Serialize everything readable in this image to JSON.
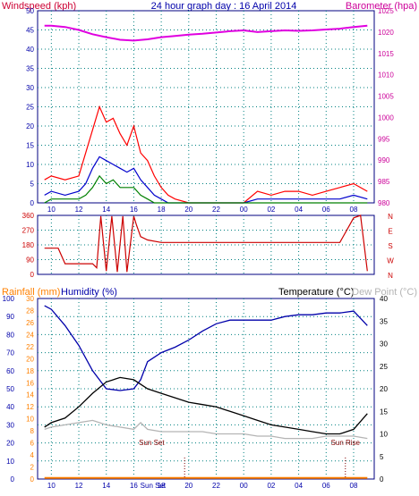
{
  "header": {
    "windspeed_label": "Windspeed (kph)",
    "title": "24 hour graph day : 16 April 2014",
    "barometer_label": "Barometer (hpa)"
  },
  "bottom_header": {
    "rainfall_label": "Rainfall (mm)",
    "humidity_label": "Humidity (%)",
    "temperature_label": "Temperature (°C)",
    "dewpoint_label": "Dew Point (°C)"
  },
  "colors": {
    "wind_gust": "#ff0000",
    "wind_avg": "#0000cc",
    "wind_low": "#008000",
    "barometer": "#e000e0",
    "direction": "#cc0000",
    "humidity": "#0000aa",
    "temperature": "#000000",
    "dewpoint": "#b4b4b4",
    "rainfall": "#ff8000",
    "header_red": "#cc0033",
    "header_magenta": "#cc0099",
    "header_blue": "#0000aa",
    "frame": "#000080",
    "grid": "#008080"
  },
  "time_ticks": [
    "10",
    "12",
    "14",
    "16",
    "18",
    "20",
    "22",
    "00",
    "02",
    "04",
    "06",
    "08"
  ],
  "chart_data": [
    {
      "type": "line",
      "id": "wind-barometer",
      "title": "24 hour graph day : 16 April 2014",
      "y_left": {
        "label": "Windspeed (kph)",
        "range": [
          0,
          50
        ],
        "ticks": [
          "0",
          "5",
          "10",
          "15",
          "20",
          "25",
          "30",
          "35",
          "40",
          "45",
          "50"
        ]
      },
      "y_right": {
        "label": "Barometer (hpa)",
        "range": [
          980,
          1025
        ],
        "ticks": [
          "980",
          "985",
          "990",
          "995",
          "1000",
          "1005",
          "1010",
          "1015",
          "1020",
          "1025"
        ]
      },
      "x_ticks": [
        "10",
        "12",
        "14",
        "16",
        "18",
        "20",
        "22",
        "00",
        "02",
        "04",
        "06",
        "08"
      ],
      "grid": true,
      "series": [
        {
          "role": "barometer",
          "x": [
            9.5,
            10,
            11,
            12,
            13,
            14,
            15,
            16,
            17,
            18,
            19,
            20,
            21,
            22,
            23,
            24,
            25,
            26,
            27,
            28,
            29,
            30,
            31,
            32,
            33
          ],
          "values": [
            1021.5,
            1021.5,
            1021.2,
            1020.5,
            1019.5,
            1018.8,
            1018.2,
            1018.0,
            1018.3,
            1018.8,
            1019.1,
            1019.4,
            1019.6,
            1019.9,
            1020.2,
            1020.4,
            1020.0,
            1020.2,
            1020.4,
            1020.3,
            1020.4,
            1020.6,
            1020.8,
            1021.2,
            1021.5
          ]
        },
        {
          "role": "wind_gust",
          "x": [
            9.5,
            10,
            11,
            12,
            12.5,
            13,
            13.5,
            14,
            14.5,
            15,
            15.5,
            16,
            16.5,
            17,
            17.5,
            18,
            18.5,
            19,
            20,
            22,
            24,
            25,
            26,
            27,
            28,
            29,
            30,
            31,
            32,
            33
          ],
          "values": [
            6,
            7,
            6,
            7,
            13,
            19,
            25,
            21,
            22,
            18,
            15,
            20,
            13,
            11,
            7,
            4,
            2,
            1,
            0,
            0,
            0,
            3,
            2,
            3,
            3,
            2,
            3,
            4,
            5,
            3
          ]
        },
        {
          "role": "wind_avg",
          "x": [
            9.5,
            10,
            11,
            12,
            12.5,
            13,
            13.5,
            14,
            14.5,
            15,
            15.5,
            16,
            16.5,
            17,
            17.5,
            18,
            18.5,
            19,
            20,
            22,
            24,
            25,
            26,
            27,
            28,
            29,
            30,
            31,
            32,
            33
          ],
          "values": [
            2,
            3,
            2,
            3,
            5,
            9,
            12,
            11,
            10,
            9,
            8,
            9,
            6,
            4,
            2,
            1,
            0,
            0,
            0,
            0,
            0,
            1,
            1,
            1,
            1,
            1,
            1,
            1,
            2,
            1
          ]
        },
        {
          "role": "wind_low",
          "x": [
            9.5,
            10,
            11,
            12,
            12.5,
            13,
            13.5,
            14,
            14.5,
            15,
            15.5,
            16,
            16.5,
            17,
            17.5,
            18,
            18.5,
            19,
            20,
            22,
            24,
            25,
            26,
            27,
            28,
            29,
            30,
            31,
            32,
            33
          ],
          "values": [
            0,
            1,
            1,
            1,
            2,
            4,
            7,
            5,
            6,
            4,
            4,
            4,
            2,
            1,
            0,
            0,
            0,
            0,
            0,
            0,
            0,
            0,
            0,
            0,
            0,
            0,
            0,
            0,
            0,
            0
          ]
        }
      ]
    },
    {
      "type": "line",
      "id": "wind-direction",
      "y_left_ticks": [
        "0",
        "90",
        "180",
        "270",
        "360"
      ],
      "y_right_ticks": [
        "N",
        "W",
        "S",
        "E",
        "N"
      ],
      "y_range": [
        0,
        360
      ],
      "grid": true,
      "series": [
        {
          "role": "direction",
          "x": [
            9.5,
            10.5,
            11,
            12,
            13,
            13.3,
            13.6,
            14,
            14.4,
            14.8,
            15.2,
            15.5,
            16,
            16.2,
            16.5,
            17,
            18,
            20,
            22,
            24,
            26,
            28,
            30,
            31,
            32,
            32.5,
            33
          ],
          "values": [
            160,
            160,
            65,
            65,
            65,
            40,
            355,
            20,
            355,
            15,
            355,
            15,
            355,
            300,
            230,
            210,
            195,
            195,
            195,
            195,
            195,
            195,
            195,
            195,
            345,
            360,
            20
          ]
        }
      ]
    },
    {
      "type": "line",
      "id": "temp-humidity",
      "y_left_humidity": {
        "label": "Humidity (%)",
        "range": [
          0,
          100
        ],
        "ticks": [
          "0",
          "10",
          "20",
          "30",
          "40",
          "50",
          "60",
          "70",
          "80",
          "90",
          "100"
        ]
      },
      "y_left_rainfall": {
        "label": "Rainfall (mm)",
        "range": [
          0,
          30
        ],
        "ticks": [
          "0",
          "2",
          "4",
          "6",
          "8",
          "10",
          "12",
          "14",
          "16",
          "18",
          "20",
          "22",
          "24",
          "26",
          "28",
          "30"
        ]
      },
      "y_right": {
        "label": "Temperature (°C)",
        "range": [
          0,
          40
        ],
        "ticks": [
          "0",
          "5",
          "10",
          "15",
          "20",
          "25",
          "30",
          "35",
          "40"
        ]
      },
      "x_ticks": [
        "10",
        "12",
        "14",
        "16",
        "18",
        "20",
        "22",
        "00",
        "02",
        "04",
        "06",
        "08"
      ],
      "annotations": [
        "Sun Set",
        "Sun Set",
        "Sun Rise"
      ],
      "grid": true,
      "series": [
        {
          "role": "humidity",
          "axis": "humidity",
          "x": [
            9.5,
            10,
            11,
            12,
            13,
            14,
            15,
            16,
            16.5,
            17,
            18,
            19,
            20,
            21,
            22,
            23,
            24,
            25,
            26,
            27,
            28,
            29,
            30,
            31,
            32,
            33
          ],
          "values": [
            96,
            94,
            85,
            74,
            60,
            50,
            49,
            50,
            55,
            65,
            70,
            73,
            77,
            82,
            86,
            88,
            88,
            88,
            88,
            90,
            91,
            91,
            92,
            92,
            93,
            85
          ]
        },
        {
          "role": "temperature",
          "axis": "temperature",
          "x": [
            9.5,
            10,
            11,
            12,
            13,
            14,
            15,
            16,
            17,
            18,
            19,
            20,
            21,
            22,
            23,
            24,
            25,
            26,
            27,
            28,
            29,
            30,
            31,
            32,
            33
          ],
          "values": [
            11.5,
            12.5,
            13.5,
            16,
            19,
            21.5,
            22.5,
            22,
            20,
            19,
            18,
            17,
            16.5,
            16,
            15,
            14,
            13,
            12,
            11.5,
            11,
            10.5,
            10,
            10,
            11,
            14.5
          ]
        },
        {
          "role": "dewpoint",
          "axis": "temperature",
          "x": [
            9.5,
            10,
            11,
            12,
            13,
            14,
            15,
            16,
            16.5,
            17,
            18,
            19,
            20,
            21,
            22,
            23,
            24,
            25,
            26,
            27,
            28,
            29,
            30,
            31,
            32,
            33
          ],
          "values": [
            11,
            11.5,
            12,
            12.5,
            13,
            12,
            11.5,
            11,
            12.5,
            11,
            10.5,
            10.5,
            10.5,
            10.5,
            10,
            10,
            10,
            9.5,
            9.5,
            9,
            9,
            9,
            9.5,
            9.5,
            9.5,
            9
          ]
        },
        {
          "role": "rainfall",
          "axis": "rainfall",
          "x": [
            9.5,
            33
          ],
          "values": [
            0.2,
            0.2
          ]
        }
      ]
    }
  ]
}
